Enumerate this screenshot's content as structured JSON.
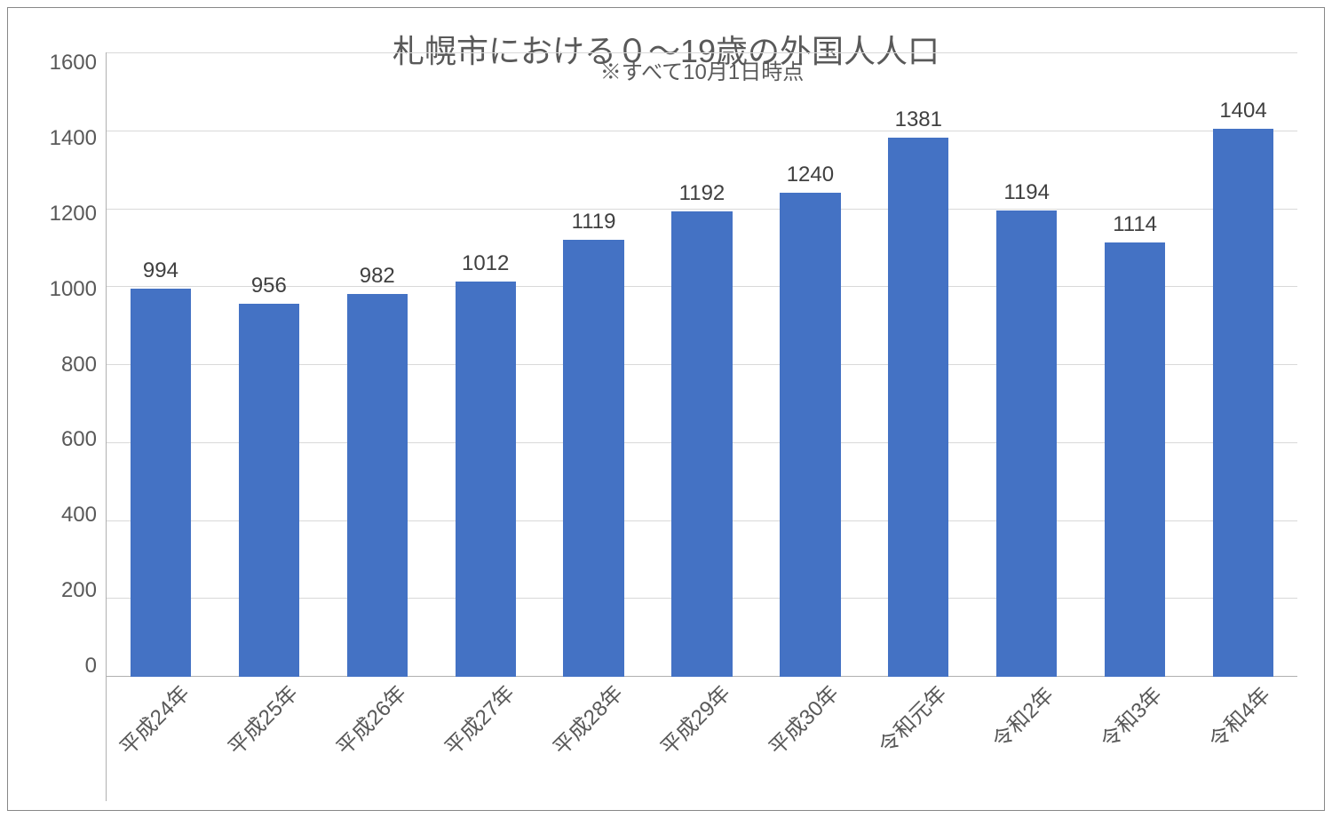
{
  "chart": {
    "type": "bar",
    "title": "札幌市における０～19歳の外国人人口",
    "subtitle": "※すべて10月1日時点",
    "title_fontsize": 36,
    "subtitle_fontsize": 24,
    "title_color": "#595959",
    "categories": [
      "平成24年",
      "平成25年",
      "平成26年",
      "平成27年",
      "平成28年",
      "平成29年",
      "平成30年",
      "令和元年",
      "令和2年",
      "令和3年",
      "令和4年"
    ],
    "values": [
      994,
      956,
      982,
      1012,
      1119,
      1192,
      1240,
      1381,
      1194,
      1114,
      1404
    ],
    "bar_color": "#4472c4",
    "bar_width_ratio": 0.56,
    "ylim": [
      0,
      1600
    ],
    "ytick_step": 200,
    "yticks": [
      0,
      200,
      400,
      600,
      800,
      1000,
      1200,
      1400,
      1600
    ],
    "datalabel_fontsize": 24,
    "datalabel_color": "#404040",
    "axis_label_fontsize": 24,
    "axis_label_color": "#595959",
    "x_label_rotation_deg": -45,
    "background_color": "#ffffff",
    "grid_color": "#d9d9d9",
    "axis_line_color": "#b0b0b0",
    "border_color": "#888888"
  }
}
